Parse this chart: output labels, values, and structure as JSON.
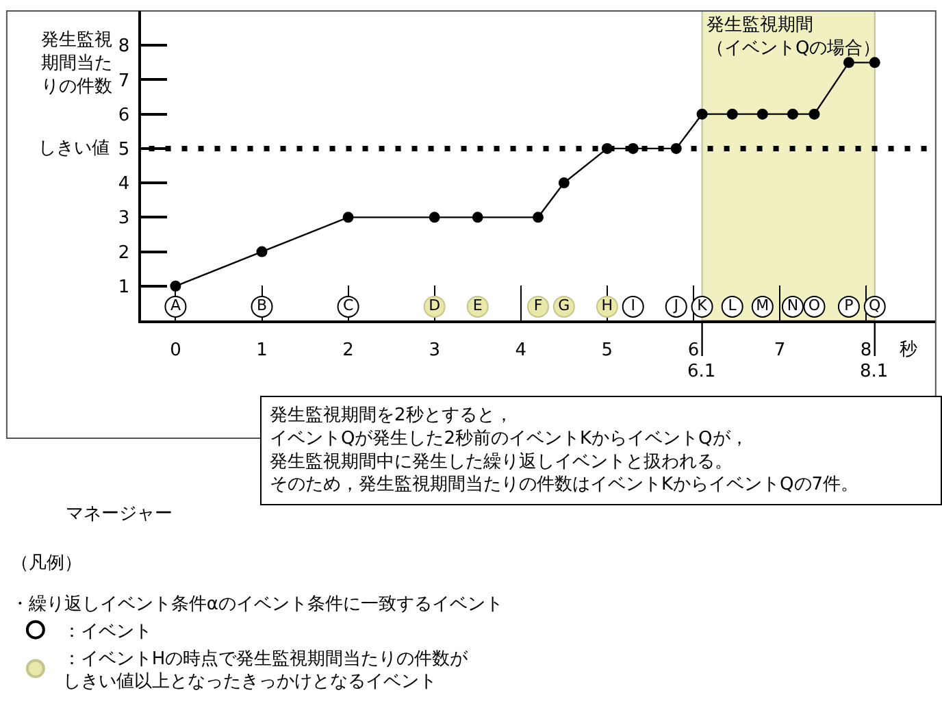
{
  "chart_data": {
    "type": "line",
    "ylabel": "発生監視期間当たりの件数",
    "xlabel": "秒",
    "legend_title": "・繰り返しイベント条件αのイベント条件に一致するイベント",
    "series": [
      {
        "color": "#000000",
        "x": [
          0,
          1,
          2,
          3,
          3.5,
          4.2,
          4.5,
          5,
          5.3,
          5.8,
          6.1,
          6.45,
          6.8,
          7.15,
          7.4,
          7.8,
          8.1
        ],
        "values": [
          1,
          2,
          3,
          3,
          3,
          3,
          4,
          5,
          5,
          5,
          6,
          6,
          6,
          6,
          6,
          7.5,
          7.5
        ]
      },
      {
        "type": "scatter",
        "name": "：イベント",
        "color": "#ffffff",
        "x": [
          0,
          1,
          2,
          5.3,
          5.8,
          6.1,
          6.45,
          6.8,
          7.15,
          7.4,
          7.8,
          8.1
        ],
        "values": [
          0.4,
          0.4,
          0.4,
          0.4,
          0.4,
          0.4,
          0.4,
          0.4,
          0.4,
          0.4,
          0.4,
          0.4
        ],
        "value_labels": [
          "A",
          "B",
          "C",
          "I",
          "J",
          "K",
          "L",
          "M",
          "N",
          "O",
          "P",
          "Q"
        ]
      },
      {
        "type": "scatter",
        "name": "：イベントHの時点で発生監視期間当たりの件数がしきい値以上となったきっかけとなるイベント",
        "color": "#e8e8a8",
        "x": [
          3,
          3.5,
          4.2,
          4.5,
          5
        ],
        "values": [
          0.4,
          0.4,
          0.4,
          0.4,
          0.4
        ],
        "value_labels": [
          "D",
          "E",
          "F",
          "G",
          "H"
        ]
      }
    ],
    "xlim": [
      -0.4,
      8.8
    ],
    "xticks": [
      0,
      1,
      2,
      3,
      4,
      5,
      6,
      7,
      8
    ],
    "ylim": [
      0,
      9
    ],
    "yticks": [
      1,
      2,
      3,
      4,
      5,
      6,
      7,
      8
    ],
    "ref_lines": [
      {
        "axis": "y",
        "value": 5,
        "label": "しきい値",
        "line_style": "dotted",
        "color": "#000000"
      }
    ],
    "bands": [
      {
        "axis": "x",
        "from": 6.1,
        "to": 8.1,
        "label": "発生監視期間（イベントQの場合）",
        "color": "#f0f0c0"
      }
    ],
    "annotations": [
      "発生監視期間を2秒とすると，イベントQが発生した2秒前のイベントKからイベントQが，発生監視期間中に発生した繰り返しイベントと扱われる。そのため，発生監視期間当たりの件数はイベントKからイベントQの7件。",
      "マネージャー",
      "（凡例）",
      {
        "text": "6.1",
        "x": 6.1
      },
      {
        "text": "8.1",
        "x": 8.1
      }
    ],
    "marker": "circle",
    "legend": "bottom left"
  }
}
